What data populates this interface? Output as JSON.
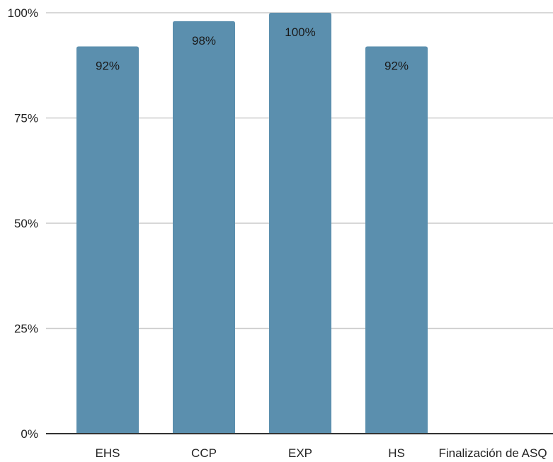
{
  "chart_data": {
    "type": "bar",
    "categories": [
      "EHS",
      "CCP",
      "EXP",
      "HS",
      "Finalización de ASQ"
    ],
    "values": [
      92,
      98,
      100,
      92,
      0
    ],
    "data_labels": [
      "92%",
      "98%",
      "100%",
      "92%",
      ""
    ],
    "ylim": [
      0,
      100
    ],
    "yticks": [
      0,
      25,
      50,
      75,
      100
    ],
    "ytick_labels": [
      "0%",
      "25%",
      "50%",
      "75%",
      "100%"
    ],
    "title": "",
    "xlabel": "",
    "ylabel": "",
    "grid": true,
    "legend": "none",
    "colors": {
      "bar": "#5b8fae",
      "grid": "#cccccc",
      "axis": "#333333"
    }
  }
}
